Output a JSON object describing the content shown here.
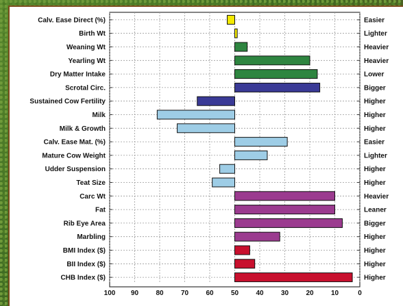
{
  "chart_data": {
    "type": "bar",
    "orientation": "horizontal",
    "x_axis_reversed": true,
    "xlim": [
      100,
      0
    ],
    "x_ticks": [
      "100",
      "90",
      "80",
      "70",
      "60",
      "50",
      "40",
      "30",
      "20",
      "10",
      "0"
    ],
    "baseline": 50,
    "grid": true,
    "rows": [
      {
        "trait": "Calv. Ease Direct (%)",
        "value": 53,
        "direction": "Easier",
        "color": "#f4ea00"
      },
      {
        "trait": "Birth Wt",
        "value": 49,
        "direction": "Lighter",
        "color": "#f4ea00"
      },
      {
        "trait": "Weaning Wt",
        "value": 45,
        "direction": "Heavier",
        "color": "#2e8540"
      },
      {
        "trait": "Yearling Wt",
        "value": 20,
        "direction": "Heavier",
        "color": "#2e8540"
      },
      {
        "trait": "Dry Matter Intake",
        "value": 17,
        "direction": "Lower",
        "color": "#2e8540"
      },
      {
        "trait": "Scrotal Circ.",
        "value": 16,
        "direction": "Bigger",
        "color": "#3a3a96"
      },
      {
        "trait": "Sustained Cow Fertility",
        "value": 65,
        "direction": "Higher",
        "color": "#3a3a96"
      },
      {
        "trait": "Milk",
        "value": 81,
        "direction": "Higher",
        "color": "#9ecde6"
      },
      {
        "trait": "Milk & Growth",
        "value": 73,
        "direction": "Higher",
        "color": "#9ecde6"
      },
      {
        "trait": "Calv. Ease Mat. (%)",
        "value": 29,
        "direction": "Easier",
        "color": "#9ecde6"
      },
      {
        "trait": "Mature Cow Weight",
        "value": 37,
        "direction": "Lighter",
        "color": "#9ecde6"
      },
      {
        "trait": "Udder Suspension",
        "value": 56,
        "direction": "Higher",
        "color": "#9ecde6"
      },
      {
        "trait": "Teat Size",
        "value": 59,
        "direction": "Higher",
        "color": "#9ecde6"
      },
      {
        "trait": "Carc Wt",
        "value": 10,
        "direction": "Heavier",
        "color": "#9b3b8f"
      },
      {
        "trait": "Fat",
        "value": 10,
        "direction": "Leaner",
        "color": "#9b3b8f"
      },
      {
        "trait": "Rib Eye Area",
        "value": 7,
        "direction": "Bigger",
        "color": "#9b3b8f"
      },
      {
        "trait": "Marbling",
        "value": 32,
        "direction": "Higher",
        "color": "#9b3b8f"
      },
      {
        "trait": "BMI Index ($)",
        "value": 44,
        "direction": "Higher",
        "color": "#c8102e"
      },
      {
        "trait": "BII Index ($)",
        "value": 42,
        "direction": "Higher",
        "color": "#c8102e"
      },
      {
        "trait": "CHB Index ($)",
        "value": 3,
        "direction": "Higher",
        "color": "#c8102e"
      }
    ]
  }
}
